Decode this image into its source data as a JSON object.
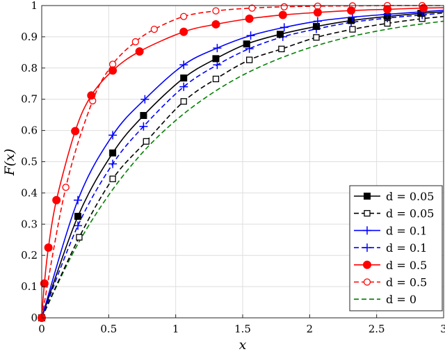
{
  "chart_data": {
    "type": "line",
    "title": "",
    "xlabel": "x",
    "ylabel": "F(x)",
    "xlim": [
      0,
      3
    ],
    "ylim": [
      0,
      1
    ],
    "xticks": [
      0,
      0.5,
      1,
      1.5,
      2,
      2.5,
      3
    ],
    "xtick_labels": [
      "0",
      "0.5",
      "1",
      "1.5",
      "2",
      "2.5",
      "3"
    ],
    "yticks": [
      0,
      0.1,
      0.2,
      0.3,
      0.4,
      0.5,
      0.6,
      0.7,
      0.8,
      0.9,
      1
    ],
    "ytick_labels": [
      "0",
      "0.1",
      "0.2",
      "0.3",
      "0.4",
      "0.5",
      "0.6",
      "0.7",
      "0.8",
      "0.9",
      "1"
    ],
    "grid": true,
    "legend_position": "bottom-right",
    "series": [
      {
        "name": "d = 0.05",
        "color": "#000000",
        "dash": "solid",
        "marker": "filled-square",
        "x": [
          0,
          0.27,
          0.53,
          0.76,
          1.06,
          1.3,
          1.53,
          1.78,
          2.05,
          2.31,
          2.58,
          2.83,
          3.0
        ],
        "y": [
          0,
          0.325,
          0.528,
          0.648,
          0.768,
          0.83,
          0.877,
          0.908,
          0.933,
          0.952,
          0.965,
          0.975,
          0.98
        ]
      },
      {
        "name": "d = 0.05",
        "color": "#000000",
        "dash": "dashed",
        "marker": "open-square",
        "x": [
          0,
          0.28,
          0.53,
          0.78,
          1.06,
          1.3,
          1.55,
          1.79,
          2.05,
          2.32,
          2.58,
          2.84,
          3.0
        ],
        "y": [
          0,
          0.258,
          0.445,
          0.565,
          0.693,
          0.765,
          0.826,
          0.861,
          0.898,
          0.924,
          0.943,
          0.958,
          0.965
        ]
      },
      {
        "name": "d = 0.1",
        "color": "#0000ff",
        "dash": "solid",
        "marker": "plus",
        "x": [
          0,
          0.27,
          0.53,
          0.77,
          1.06,
          1.31,
          1.56,
          1.81,
          2.06,
          2.32,
          2.58,
          2.84,
          3.0
        ],
        "y": [
          0,
          0.377,
          0.585,
          0.7,
          0.81,
          0.864,
          0.904,
          0.93,
          0.95,
          0.963,
          0.972,
          0.98,
          0.985
        ]
      },
      {
        "name": "d = 0.1",
        "color": "#0000ff",
        "dash": "dashed",
        "marker": "plus",
        "x": [
          0,
          0.27,
          0.53,
          0.76,
          1.06,
          1.31,
          1.55,
          1.8,
          2.05,
          2.31,
          2.58,
          2.84,
          3.0
        ],
        "y": [
          0,
          0.295,
          0.493,
          0.613,
          0.74,
          0.81,
          0.862,
          0.9,
          0.925,
          0.946,
          0.96,
          0.97,
          0.976
        ]
      },
      {
        "name": "d = 0.5",
        "color": "#ff0000",
        "dash": "solid",
        "marker": "filled-circle",
        "x": [
          0,
          0.02,
          0.05,
          0.11,
          0.25,
          0.37,
          0.53,
          0.73,
          1.06,
          1.3,
          1.55,
          1.8,
          2.06,
          2.31,
          2.58,
          2.85,
          3.0
        ],
        "y": [
          0,
          0.11,
          0.225,
          0.377,
          0.598,
          0.712,
          0.792,
          0.853,
          0.916,
          0.94,
          0.958,
          0.97,
          0.978,
          0.984,
          0.988,
          0.992,
          0.993
        ]
      },
      {
        "name": "d = 0.5",
        "color": "#ff0000",
        "dash": "dashed",
        "marker": "open-circle",
        "x": [
          0,
          0.18,
          0.38,
          0.53,
          0.7,
          0.84,
          1.06,
          1.3,
          1.57,
          1.81,
          2.06,
          2.32,
          2.58,
          2.84,
          3.0
        ],
        "y": [
          0,
          0.418,
          0.695,
          0.812,
          0.884,
          0.924,
          0.965,
          0.983,
          0.992,
          0.996,
          0.998,
          0.999,
          1.0,
          1.0,
          1.0
        ]
      },
      {
        "name": "d = 0",
        "color": "#008000",
        "dash": "dashed",
        "marker": "none",
        "x": [
          0,
          0.25,
          0.5,
          0.75,
          1.0,
          1.25,
          1.5,
          1.75,
          2.0,
          2.25,
          2.5,
          2.75,
          3.0
        ],
        "y": [
          0,
          0.221,
          0.393,
          0.528,
          0.632,
          0.713,
          0.777,
          0.826,
          0.865,
          0.895,
          0.918,
          0.936,
          0.95
        ]
      }
    ]
  }
}
